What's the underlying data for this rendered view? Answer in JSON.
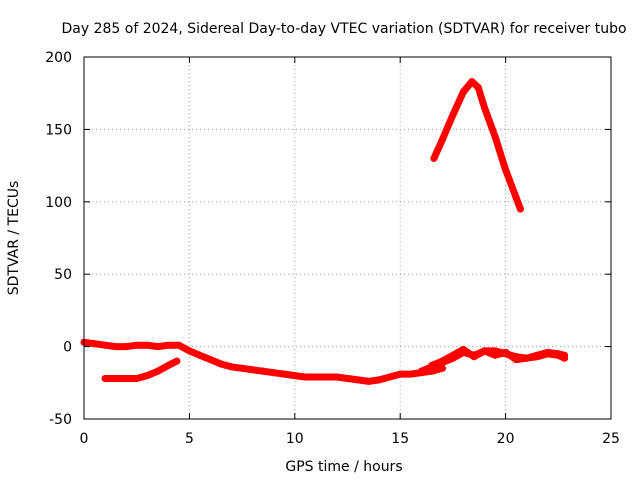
{
  "chart_data": {
    "type": "scatter",
    "title": "Day 285 of 2024, Sidereal Day-to-day VTEC variation (SDTVAR) for receiver tubo",
    "xlabel": "GPS time / hours",
    "ylabel": "SDTVAR / TECUs",
    "xlim": [
      0,
      25
    ],
    "ylim": [
      -50,
      200
    ],
    "xticks": [
      0,
      5,
      10,
      15,
      20,
      25
    ],
    "yticks": [
      -50,
      0,
      50,
      100,
      150,
      200
    ],
    "grid": true,
    "series_color": "#ff0000",
    "series": [
      {
        "name": "main-trace",
        "x": [
          0,
          0.5,
          1,
          1.5,
          2,
          2.5,
          3,
          3.5,
          4,
          4.5,
          5,
          5.5,
          6,
          6.5,
          7,
          7.5,
          8,
          8.5,
          9,
          9.5,
          10,
          10.5,
          11,
          11.5,
          12,
          12.5,
          13,
          13.5,
          14,
          14.5,
          15,
          15.5,
          16,
          16.5,
          17
        ],
        "y": [
          3,
          2,
          1,
          0,
          0,
          1,
          1,
          0,
          1,
          1,
          -3,
          -6,
          -9,
          -12,
          -14,
          -15,
          -16,
          -17,
          -18,
          -19,
          -20,
          -21,
          -21,
          -21,
          -21,
          -22,
          -23,
          -24,
          -23,
          -21,
          -19,
          -19,
          -18,
          -17,
          -15
        ]
      },
      {
        "name": "short-segment",
        "x": [
          1,
          1.5,
          2,
          2.5,
          3,
          3.5,
          4,
          4.4
        ],
        "y": [
          -22,
          -22,
          -22,
          -22,
          -20,
          -17,
          -13,
          -10
        ]
      },
      {
        "name": "late-traces-a",
        "x": [
          16,
          16.5,
          17,
          17.5,
          18,
          18.5,
          19,
          19.5,
          20,
          20.5,
          21,
          21.5,
          22,
          22.5,
          22.8
        ],
        "y": [
          -17,
          -14,
          -11,
          -8,
          -4,
          -6,
          -3,
          -3,
          -5,
          -7,
          -8,
          -6,
          -4,
          -5,
          -6
        ]
      },
      {
        "name": "late-traces-b",
        "x": [
          16.5,
          17,
          17.5,
          18,
          18.5,
          19,
          19.5,
          20,
          20.5,
          21,
          21.5,
          22,
          22.5,
          22.8
        ],
        "y": [
          -13,
          -10,
          -6,
          -2,
          -7,
          -3,
          -6,
          -4,
          -9,
          -8,
          -7,
          -5,
          -6,
          -8
        ]
      },
      {
        "name": "high-arc",
        "x": [
          16.6,
          17,
          17.5,
          18,
          18.4,
          18.7,
          19,
          19.5,
          20,
          20.5,
          20.7
        ],
        "y": [
          130,
          143,
          160,
          176,
          183,
          179,
          165,
          145,
          122,
          103,
          95
        ]
      }
    ]
  }
}
